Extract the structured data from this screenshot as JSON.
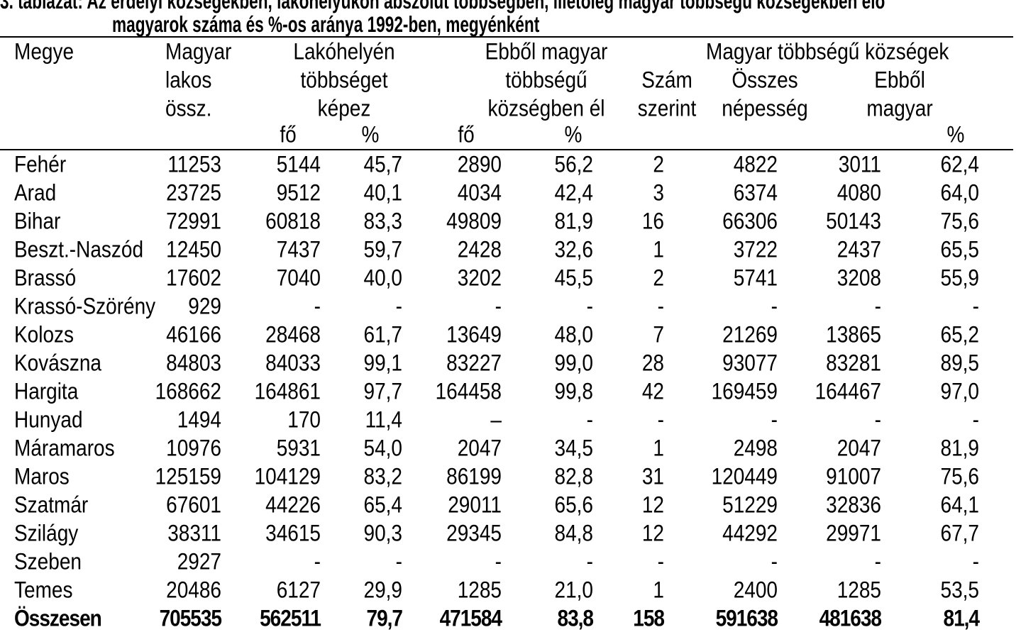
{
  "title": {
    "line1": "3. táblázat: Az erdélyi községekben, lakóhelyükön abszolút többségben, illetőleg magyar többségű községekben élő",
    "line2": "magyarok száma és %-os aránya 1992-ben, megyénként"
  },
  "headers": {
    "megye": "Megye",
    "magyar_lakos": [
      "Magyar",
      "lakos",
      "össz."
    ],
    "lakohelyen": [
      "Lakóhelyén",
      "többséget",
      "képez"
    ],
    "ebbol_magyar": [
      "Ebből magyar",
      "többségű",
      "községben él"
    ],
    "magyar_tobbsegu": "Magyar többségű községek",
    "szam": [
      "Szám",
      "szerint"
    ],
    "osszes": [
      "Összes",
      "népesség"
    ],
    "ebbol": [
      "Ebből",
      "magyar"
    ],
    "fo": "fő",
    "pct": "%"
  },
  "rows": [
    [
      "Fehér",
      "11253",
      "5144",
      "45,7",
      "2890",
      "56,2",
      "2",
      "4822",
      "3011",
      "62,4"
    ],
    [
      "Arad",
      "23725",
      "9512",
      "40,1",
      "4034",
      "42,4",
      "3",
      "6374",
      "4080",
      "64,0"
    ],
    [
      "Bihar",
      "72991",
      "60818",
      "83,3",
      "49809",
      "81,9",
      "16",
      "66306",
      "50143",
      "75,6"
    ],
    [
      "Beszt.-Naszód",
      "12450",
      "7437",
      "59,7",
      "2428",
      "32,6",
      "1",
      "3722",
      "2437",
      "65,5"
    ],
    [
      "Brassó",
      "17602",
      "7040",
      "40,0",
      "3202",
      "45,5",
      "2",
      "5741",
      "3208",
      "55,9"
    ],
    [
      "Krassó-Szörény",
      "929",
      "-",
      "-",
      "-",
      "-",
      "-",
      "-",
      "-",
      "-"
    ],
    [
      "Kolozs",
      "46166",
      "28468",
      "61,7",
      "13649",
      "48,0",
      "7",
      "21269",
      "13865",
      "65,2"
    ],
    [
      "Kovászna",
      "84803",
      "84033",
      "99,1",
      "83227",
      "99,0",
      "28",
      "93077",
      "83281",
      "89,5"
    ],
    [
      "Hargita",
      "168662",
      "164861",
      "97,7",
      "164458",
      "99,8",
      "42",
      "169459",
      "164467",
      "97,0"
    ],
    [
      "Hunyad",
      "1494",
      "170",
      "11,4",
      "–",
      "-",
      "-",
      "-",
      "-",
      "-"
    ],
    [
      "Máramaros",
      "10976",
      "5931",
      "54,0",
      "2047",
      "34,5",
      "1",
      "2498",
      "2047",
      "81,9"
    ],
    [
      "Maros",
      "125159",
      "104129",
      "83,2",
      "86199",
      "82,8",
      "31",
      "120449",
      "91007",
      "75,6"
    ],
    [
      "Szatmár",
      "67601",
      "44226",
      "65,4",
      "29011",
      "65,6",
      "12",
      "51229",
      "32836",
      "64,1"
    ],
    [
      "Szilágy",
      "38311",
      "34615",
      "90,3",
      "29345",
      "84,8",
      "12",
      "44292",
      "29971",
      "67,7"
    ],
    [
      "Szeben",
      "2927",
      "-",
      "-",
      "-",
      "-",
      "-",
      "-",
      "-",
      "-"
    ],
    [
      "Temes",
      "20486",
      "6127",
      "29,9",
      "1285",
      "21,0",
      "1",
      "2400",
      "1285",
      "53,5"
    ]
  ],
  "total": [
    "Összesen",
    "705535",
    "562511",
    "79,7",
    "471584",
    "83,8",
    "158",
    "591638",
    "481638",
    "81,4"
  ]
}
